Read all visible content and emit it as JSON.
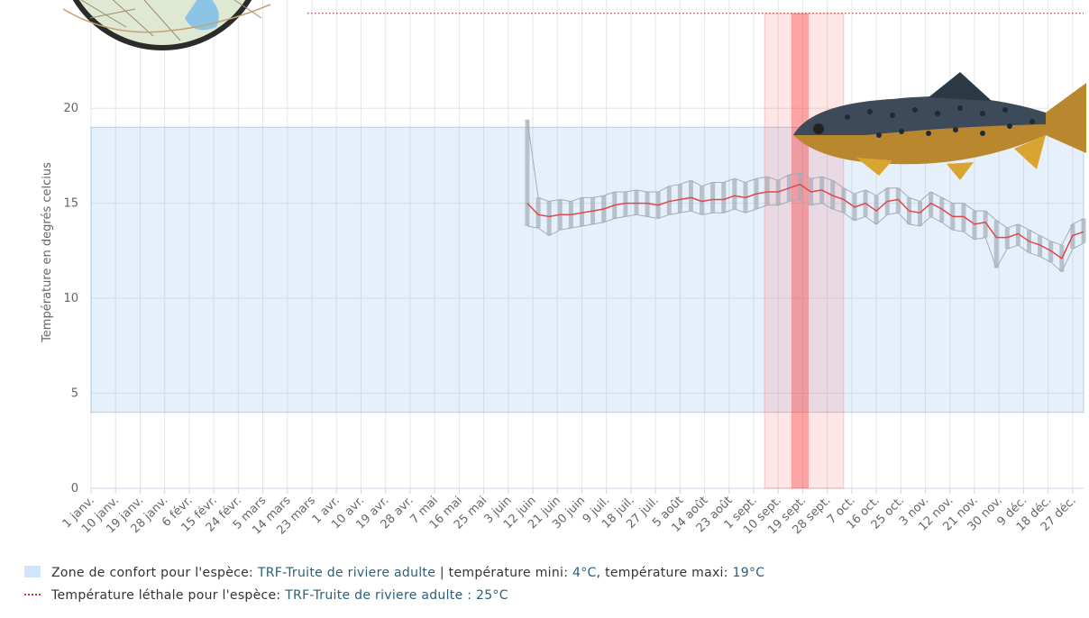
{
  "chart_data": {
    "type": "line",
    "y_label": "Température en degrés celcius",
    "xlim": [
      0,
      364
    ],
    "ylim": [
      0,
      25.7
    ],
    "yticks": [
      0,
      5,
      10,
      15,
      20
    ],
    "xticks": [
      {
        "value": 0,
        "label": "1 janv."
      },
      {
        "value": 9,
        "label": "10 janv."
      },
      {
        "value": 18,
        "label": "19 janv."
      },
      {
        "value": 27,
        "label": "28 janv."
      },
      {
        "value": 36,
        "label": "6 févr."
      },
      {
        "value": 45,
        "label": "15 févr."
      },
      {
        "value": 54,
        "label": "24 févr."
      },
      {
        "value": 63,
        "label": "5 mars"
      },
      {
        "value": 72,
        "label": "14 mars"
      },
      {
        "value": 81,
        "label": "23 mars"
      },
      {
        "value": 90,
        "label": "1 avr."
      },
      {
        "value": 99,
        "label": "10 avr."
      },
      {
        "value": 108,
        "label": "19 avr."
      },
      {
        "value": 117,
        "label": "28 avr."
      },
      {
        "value": 126,
        "label": "7 mai"
      },
      {
        "value": 135,
        "label": "16 mai"
      },
      {
        "value": 144,
        "label": "25 mai"
      },
      {
        "value": 153,
        "label": "3 juin"
      },
      {
        "value": 162,
        "label": "12 juin"
      },
      {
        "value": 171,
        "label": "21 juin"
      },
      {
        "value": 180,
        "label": "30 juin"
      },
      {
        "value": 189,
        "label": "9 juil."
      },
      {
        "value": 198,
        "label": "18 juil."
      },
      {
        "value": 207,
        "label": "27 juil."
      },
      {
        "value": 216,
        "label": "5 août"
      },
      {
        "value": 225,
        "label": "14 août"
      },
      {
        "value": 234,
        "label": "23 août"
      },
      {
        "value": 243,
        "label": "1 sept."
      },
      {
        "value": 252,
        "label": "10 sept."
      },
      {
        "value": 261,
        "label": "19 sept."
      },
      {
        "value": 270,
        "label": "28 sept."
      },
      {
        "value": 279,
        "label": "7 oct."
      },
      {
        "value": 288,
        "label": "16 oct."
      },
      {
        "value": 297,
        "label": "25 oct."
      },
      {
        "value": 306,
        "label": "3 nov."
      },
      {
        "value": 315,
        "label": "12 nov."
      },
      {
        "value": 324,
        "label": "21 nov."
      },
      {
        "value": 333,
        "label": "30 nov."
      },
      {
        "value": 342,
        "label": "9 déc."
      },
      {
        "value": 351,
        "label": "18 déc."
      },
      {
        "value": 360,
        "label": "27 déc."
      }
    ],
    "grid": true,
    "x": [
      160,
      164,
      168,
      172,
      176,
      180,
      184,
      188,
      192,
      196,
      200,
      204,
      208,
      212,
      216,
      220,
      224,
      228,
      232,
      236,
      240,
      244,
      248,
      252,
      256,
      260,
      264,
      268,
      272,
      276,
      280,
      284,
      288,
      292,
      296,
      300,
      304,
      308,
      312,
      316,
      320,
      324,
      328,
      332,
      336,
      340,
      344,
      348,
      352,
      356,
      360,
      364
    ],
    "series": [
      {
        "color": "#a3adb8",
        "values": [
          13.8,
          13.7,
          13.3,
          13.6,
          13.7,
          13.8,
          13.9,
          14.0,
          14.2,
          14.3,
          14.4,
          14.3,
          14.2,
          14.4,
          14.5,
          14.6,
          14.4,
          14.5,
          14.5,
          14.7,
          14.5,
          14.7,
          14.9,
          14.9,
          15.1,
          15.2,
          14.9,
          15.0,
          14.7,
          14.5,
          14.1,
          14.3,
          13.9,
          14.4,
          14.5,
          13.9,
          13.8,
          14.3,
          14.0,
          13.6,
          13.5,
          13.1,
          13.2,
          11.6,
          12.6,
          12.8,
          12.4,
          12.2,
          11.9,
          11.4,
          12.6,
          12.9
        ]
      },
      {
        "color": "#a3adb8",
        "values": [
          19.4,
          15.3,
          15.1,
          15.2,
          15.1,
          15.3,
          15.3,
          15.4,
          15.6,
          15.6,
          15.7,
          15.6,
          15.6,
          15.9,
          16.0,
          16.2,
          15.9,
          16.1,
          16.1,
          16.3,
          16.1,
          16.3,
          16.4,
          16.2,
          16.5,
          16.6,
          16.3,
          16.4,
          16.2,
          15.8,
          15.5,
          15.7,
          15.4,
          15.8,
          15.8,
          15.3,
          15.1,
          15.6,
          15.3,
          15.0,
          15.0,
          14.6,
          14.6,
          14.1,
          13.7,
          13.9,
          13.6,
          13.3,
          13.0,
          12.8,
          13.9,
          14.2
        ]
      },
      {
        "color": "#e0474c",
        "values": [
          15.0,
          14.4,
          14.3,
          14.4,
          14.4,
          14.5,
          14.6,
          14.7,
          14.9,
          15.0,
          15.0,
          15.0,
          14.9,
          15.1,
          15.2,
          15.3,
          15.1,
          15.2,
          15.2,
          15.4,
          15.3,
          15.5,
          15.6,
          15.6,
          15.8,
          16.0,
          15.6,
          15.7,
          15.4,
          15.2,
          14.8,
          15.0,
          14.6,
          15.1,
          15.2,
          14.6,
          14.5,
          15.0,
          14.7,
          14.3,
          14.3,
          13.9,
          14.0,
          13.2,
          13.2,
          13.4,
          13.0,
          12.8,
          12.5,
          12.1,
          13.3,
          13.5
        ]
      }
    ],
    "comfort_zone": {
      "range": [
        4,
        19
      ],
      "color": "#7cb5ec",
      "legend": [
        "Zone de confort pour l'espèce:",
        "TRF-Truite de riviere adulte",
        "| température mini:",
        "4°C",
        ", température maxi:",
        "19°C"
      ]
    },
    "lethal": {
      "value": 25,
      "color": "#e03030",
      "legend": [
        "Température léthale pour l'espèce:",
        "TRF-Truite de riviere adulte : 25°C"
      ]
    },
    "bands": [
      {
        "x": [
          247,
          276
        ],
        "color": "rgba(255,60,60,0.13)"
      },
      {
        "x": [
          257,
          263
        ],
        "color": "rgba(255,40,40,0.35)"
      }
    ]
  }
}
